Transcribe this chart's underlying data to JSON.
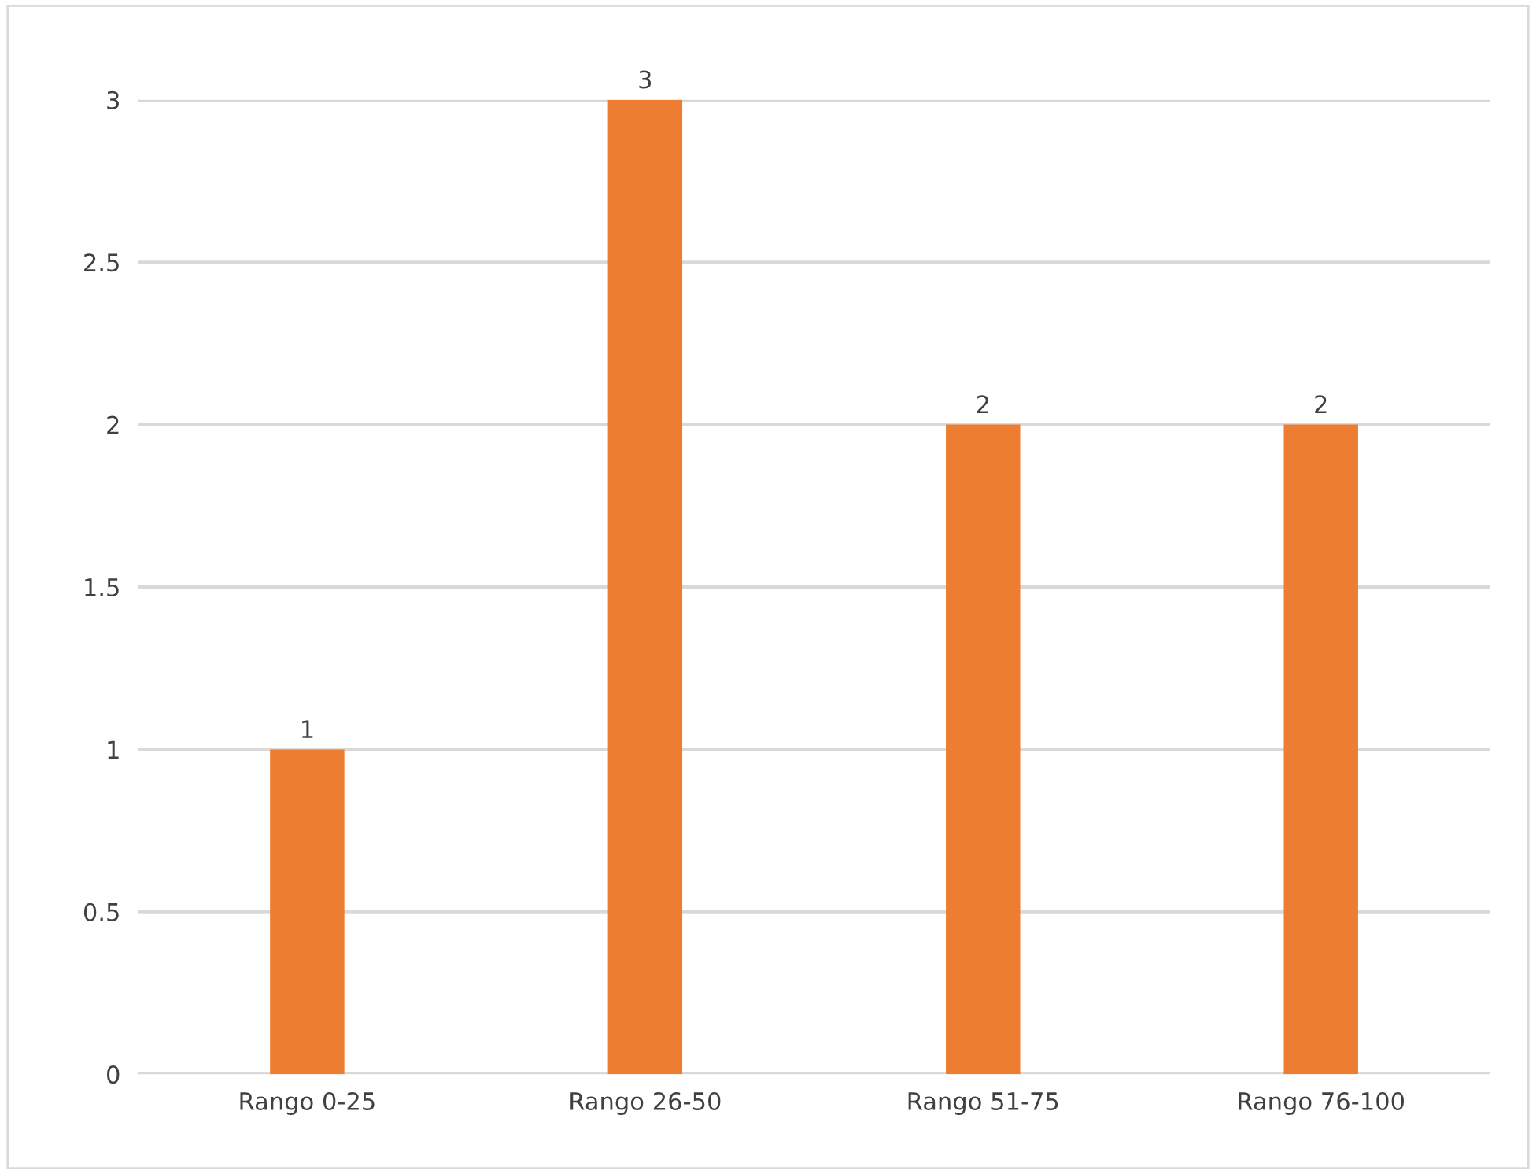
{
  "chart_data": {
    "type": "bar",
    "categories": [
      "Rango 0-25",
      "Rango 26-50",
      "Rango 51-75",
      "Rango 76-100"
    ],
    "values": [
      1,
      3,
      2,
      2
    ],
    "color": "#ed7d31",
    "ylim": [
      0,
      3
    ],
    "yticks": [
      0,
      0.5,
      1,
      1.5,
      2,
      2.5,
      3
    ],
    "grid": "y",
    "data_labels": true
  }
}
